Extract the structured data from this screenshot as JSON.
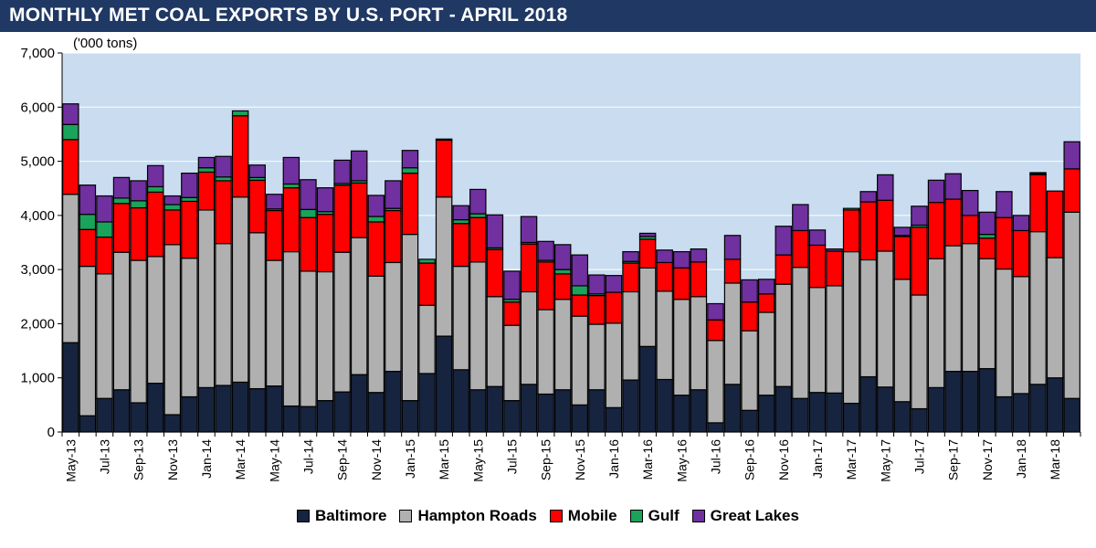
{
  "title": "MONTHLY MET COAL EXPORTS BY U.S. PORT - APRIL 2018",
  "colors": {
    "Baltimore": "#17243f",
    "Hampton Roads": "#b0b0b0",
    "Mobile": "#ff0000",
    "Gulf": "#1aa35a",
    "Great Lakes": "#7030a0",
    "plot_bg": "#c9dcf0",
    "title_bg": "#1f3864"
  },
  "chart_data": {
    "type": "bar",
    "stacked": true,
    "title": "MONTHLY MET COAL EXPORTS BY U.S. PORT - APRIL 2018",
    "unit_label": "('000 tons)",
    "ylim": [
      0,
      7000
    ],
    "y_ticks": [
      "0",
      "1,000",
      "2,000",
      "3,000",
      "4,000",
      "5,000",
      "6,000",
      "7,000"
    ],
    "y_tick_values": [
      0,
      1000,
      2000,
      3000,
      4000,
      5000,
      6000,
      7000
    ],
    "grid": true,
    "legend_position": "bottom",
    "x_tick_labels": [
      "May-13",
      "Jul-13",
      "Sep-13",
      "Nov-13",
      "Jan-14",
      "Mar-14",
      "May-14",
      "Jul-14",
      "Sep-14",
      "Nov-14",
      "Jan-15",
      "Mar-15",
      "May-15",
      "Jul-15",
      "Sep-15",
      "Nov-15",
      "Jan-16",
      "Mar-16",
      "May-16",
      "Jul-16",
      "Sep-16",
      "Nov-16",
      "Jan-17",
      "Mar-17",
      "May-17",
      "Jul-17",
      "Sep-17",
      "Nov-17",
      "Jan-18",
      "Mar-18"
    ],
    "categories": [
      "May-13",
      "Jun-13",
      "Jul-13",
      "Aug-13",
      "Sep-13",
      "Oct-13",
      "Nov-13",
      "Dec-13",
      "Jan-14",
      "Feb-14",
      "Mar-14",
      "Apr-14",
      "May-14",
      "Jun-14",
      "Jul-14",
      "Aug-14",
      "Sep-14",
      "Oct-14",
      "Nov-14",
      "Dec-14",
      "Jan-15",
      "Feb-15",
      "Mar-15",
      "Apr-15",
      "May-15",
      "Jun-15",
      "Jul-15",
      "Aug-15",
      "Sep-15",
      "Oct-15",
      "Nov-15",
      "Dec-15",
      "Jan-16",
      "Feb-16",
      "Mar-16",
      "Apr-16",
      "May-16",
      "Jun-16",
      "Jul-16",
      "Aug-16",
      "Sep-16",
      "Oct-16",
      "Nov-16",
      "Dec-16",
      "Jan-17",
      "Feb-17",
      "Mar-17",
      "Apr-17",
      "May-17",
      "Jun-17",
      "Jul-17",
      "Aug-17",
      "Sep-17",
      "Oct-17",
      "Nov-17",
      "Dec-17",
      "Jan-18",
      "Feb-18",
      "Mar-18",
      "Apr-18"
    ],
    "series": [
      {
        "name": "Baltimore",
        "values": [
          1650,
          300,
          620,
          780,
          540,
          900,
          320,
          650,
          820,
          860,
          920,
          800,
          850,
          480,
          470,
          580,
          740,
          1060,
          730,
          1120,
          580,
          1080,
          1770,
          1150,
          780,
          840,
          580,
          880,
          700,
          780,
          500,
          780,
          450,
          960,
          1580,
          970,
          680,
          780,
          170,
          880,
          400,
          680,
          840,
          620,
          730,
          720,
          530,
          1020,
          830,
          560,
          430,
          820,
          1120,
          1120,
          1170,
          650,
          710,
          880,
          1000,
          620
        ]
      },
      {
        "name": "Hampton Roads",
        "values": [
          2740,
          2760,
          2300,
          2540,
          2630,
          2340,
          3140,
          2560,
          3280,
          2620,
          3420,
          2880,
          2320,
          2850,
          2500,
          2380,
          2580,
          2530,
          2150,
          2010,
          3070,
          1260,
          2570,
          1910,
          2360,
          1660,
          1390,
          1710,
          1560,
          1670,
          1640,
          1210,
          1560,
          1630,
          1450,
          1630,
          1770,
          1720,
          1520,
          1870,
          1470,
          1530,
          1890,
          2420,
          1940,
          1980,
          2800,
          2160,
          2510,
          2260,
          2100,
          2380,
          2320,
          2360,
          2030,
          2360,
          2160,
          2820,
          2220,
          3440
        ]
      },
      {
        "name": "Mobile",
        "values": [
          1010,
          680,
          680,
          900,
          970,
          1190,
          640,
          1050,
          700,
          1160,
          1500,
          970,
          920,
          1180,
          990,
          1060,
          1240,
          1010,
          1000,
          960,
          1130,
          780,
          1050,
          790,
          820,
          870,
          430,
          880,
          880,
          470,
          390,
          530,
          570,
          530,
          530,
          530,
          580,
          640,
          380,
          440,
          530,
          340,
          540,
          680,
          780,
          640,
          770,
          1070,
          940,
          790,
          1250,
          1040,
          860,
          520,
          380,
          950,
          850,
          1050,
          1230,
          800
        ]
      },
      {
        "name": "Gulf",
        "values": [
          280,
          280,
          280,
          100,
          130,
          100,
          100,
          70,
          80,
          70,
          90,
          50,
          30,
          70,
          150,
          50,
          30,
          40,
          100,
          40,
          100,
          70,
          20,
          70,
          70,
          30,
          50,
          30,
          30,
          80,
          170,
          30,
          0,
          30,
          50,
          0,
          0,
          0,
          0,
          0,
          0,
          0,
          0,
          0,
          0,
          0,
          30,
          0,
          0,
          20,
          40,
          0,
          0,
          0,
          70,
          0,
          0,
          20,
          0,
          0
        ]
      },
      {
        "name": "Great Lakes",
        "values": [
          380,
          540,
          480,
          380,
          370,
          390,
          160,
          450,
          190,
          380,
          0,
          230,
          270,
          490,
          550,
          440,
          430,
          550,
          390,
          510,
          320,
          0,
          0,
          260,
          450,
          610,
          520,
          480,
          350,
          460,
          570,
          350,
          310,
          180,
          60,
          230,
          300,
          240,
          300,
          440,
          410,
          270,
          530,
          480,
          280,
          40,
          0,
          190,
          470,
          150,
          350,
          410,
          470,
          460,
          410,
          480,
          280,
          20,
          0,
          500
        ]
      }
    ]
  }
}
